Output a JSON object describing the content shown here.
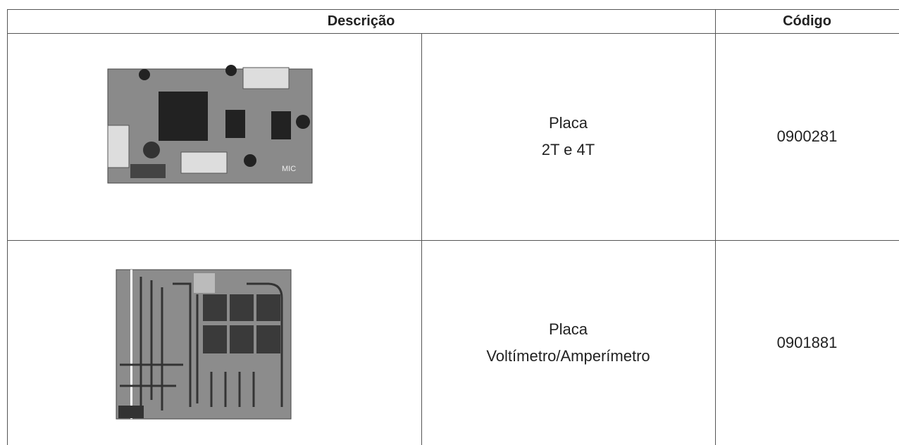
{
  "table": {
    "header": [
      "Descrição",
      "Código"
    ],
    "rows": [
      {
        "description": [
          "Placa",
          "2T e 4T"
        ],
        "code": "0900281"
      },
      {
        "description": [
          "Placa",
          "Voltímetro/Amperímetro"
        ],
        "code": "0901881"
      }
    ]
  }
}
